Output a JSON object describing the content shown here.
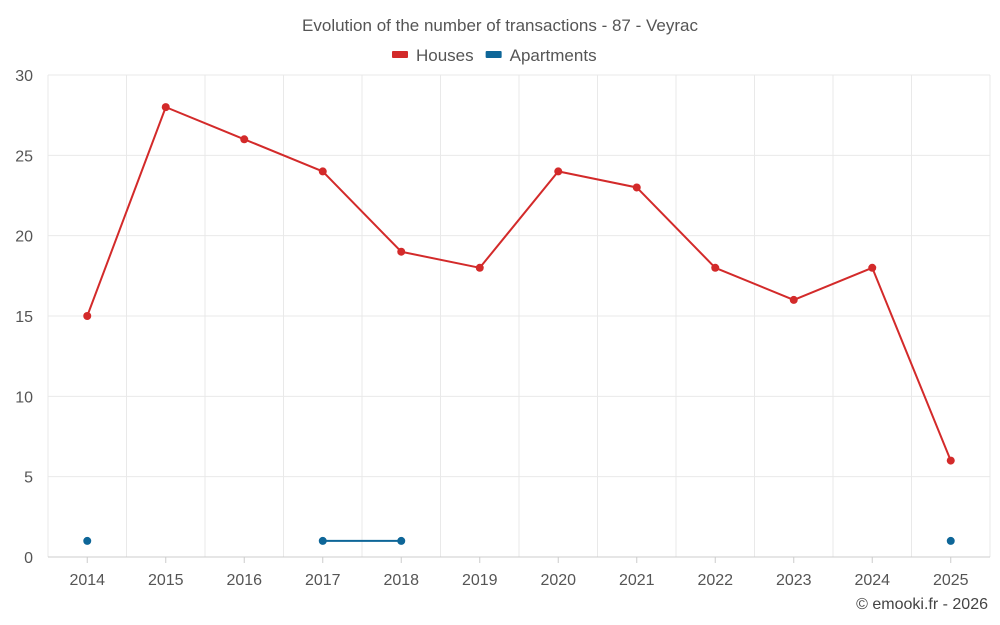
{
  "chart_data": {
    "type": "line",
    "title": "Evolution of the number of transactions - 87 - Veyrac",
    "categories": [
      "2014",
      "2015",
      "2016",
      "2017",
      "2018",
      "2019",
      "2020",
      "2021",
      "2022",
      "2023",
      "2024",
      "2025"
    ],
    "ylim": [
      0,
      30
    ],
    "yticks": [
      0,
      5,
      10,
      15,
      20,
      25,
      30
    ],
    "grid": true,
    "legend_position": "top-center",
    "xlabel": "",
    "ylabel": "",
    "series": [
      {
        "name": "Houses",
        "color": "#d32a2a",
        "values": [
          15,
          28,
          26,
          24,
          19,
          18,
          24,
          23,
          18,
          16,
          18,
          6
        ]
      },
      {
        "name": "Apartments",
        "color": "#0e6698",
        "values": [
          1,
          null,
          null,
          1,
          1,
          null,
          null,
          null,
          null,
          null,
          null,
          1
        ]
      }
    ]
  },
  "credit": "© emooki.fr - 2026"
}
